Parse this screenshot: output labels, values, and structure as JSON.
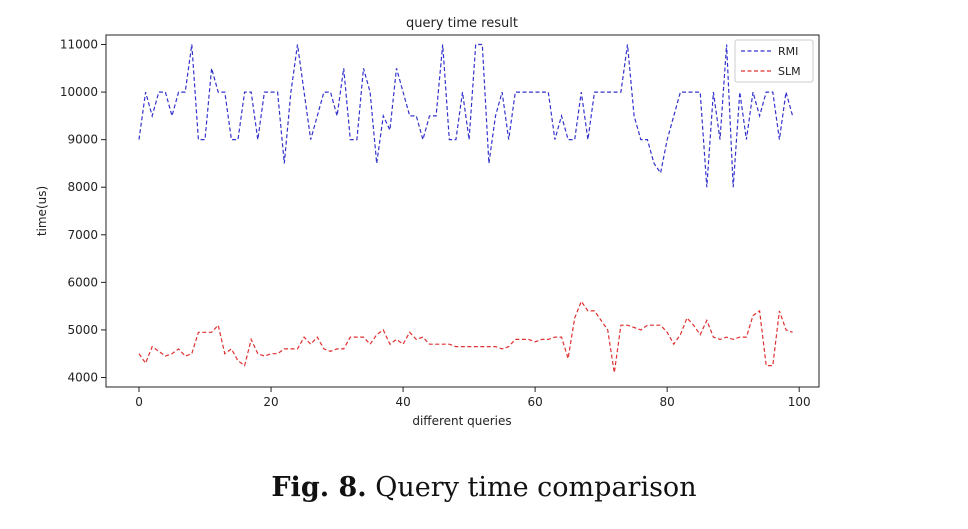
{
  "chart_data": {
    "type": "line",
    "title": "query time result",
    "xlabel": "different queries",
    "ylabel": "time(us)",
    "xlim": [
      -5,
      103
    ],
    "ylim": [
      3800,
      11200
    ],
    "x_ticks": [
      0,
      20,
      40,
      60,
      80,
      100
    ],
    "y_ticks": [
      4000,
      5000,
      6000,
      7000,
      8000,
      9000,
      10000,
      11000
    ],
    "grid": false,
    "legend_position": "top-right",
    "series": [
      {
        "name": "RMI",
        "color": "#3333cc",
        "style": "dashed",
        "values": [
          9000,
          10000,
          9500,
          10000,
          10000,
          9500,
          10000,
          10000,
          11000,
          9000,
          9000,
          10500,
          10000,
          10000,
          9000,
          9000,
          10000,
          10000,
          9000,
          10000,
          10000,
          10000,
          8500,
          10000,
          11000,
          10000,
          9000,
          9500,
          10000,
          10000,
          9500,
          10500,
          9000,
          9000,
          10500,
          10000,
          8500,
          9500,
          9200,
          10500,
          10000,
          9500,
          9500,
          9000,
          9500,
          9500,
          11000,
          9000,
          9000,
          10000,
          9000,
          11000,
          11000,
          8500,
          9500,
          10000,
          9000,
          10000,
          10000,
          10000,
          10000,
          10000,
          10000,
          9000,
          9500,
          9000,
          9000,
          10000,
          9000,
          10000,
          10000,
          10000,
          10000,
          10000,
          11000,
          9500,
          9000,
          9000,
          8500,
          8300,
          9000,
          9500,
          10000,
          10000,
          10000,
          10000,
          8000,
          10000,
          9000,
          11000,
          8000,
          10000,
          9000,
          10000,
          9500,
          10000,
          10000,
          9000,
          10000,
          9500
        ]
      },
      {
        "name": "SLM",
        "color": "#e03030",
        "style": "dashed",
        "values": [
          4500,
          4300,
          4650,
          4550,
          4450,
          4500,
          4600,
          4450,
          4500,
          4950,
          4950,
          4950,
          5100,
          4500,
          4600,
          4350,
          4250,
          4800,
          4500,
          4450,
          4500,
          4500,
          4600,
          4600,
          4600,
          4850,
          4700,
          4850,
          4600,
          4550,
          4600,
          4600,
          4850,
          4850,
          4850,
          4700,
          4900,
          5000,
          4700,
          4800,
          4700,
          4950,
          4800,
          4850,
          4700,
          4700,
          4700,
          4700,
          4650,
          4650,
          4650,
          4650,
          4650,
          4650,
          4650,
          4600,
          4650,
          4800,
          4800,
          4800,
          4750,
          4800,
          4800,
          4850,
          4850,
          4400,
          5250,
          5600,
          5400,
          5400,
          5200,
          5000,
          4100,
          5100,
          5100,
          5050,
          5000,
          5100,
          5100,
          5100,
          4950,
          4700,
          4900,
          5250,
          5100,
          4900,
          5200,
          4850,
          4800,
          4850,
          4800,
          4850,
          4850,
          5300,
          5400,
          4250,
          4250,
          5400,
          5000,
          4950
        ]
      }
    ]
  },
  "caption": {
    "label": "Fig. 8.",
    "text": "Query time comparison"
  }
}
